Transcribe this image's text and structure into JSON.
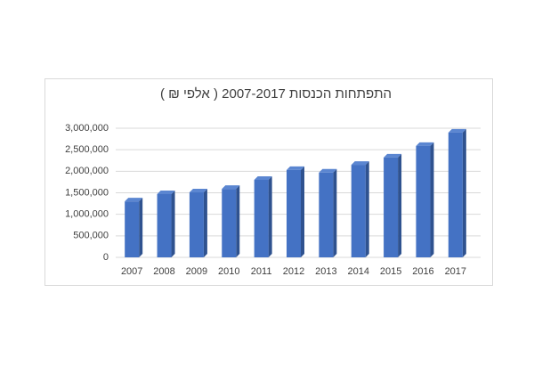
{
  "chart_data": {
    "type": "bar",
    "title": "התפתחות הכנסות 2007-2017 ( אלפי ₪ )",
    "categories": [
      "2007",
      "2008",
      "2009",
      "2010",
      "2011",
      "2012",
      "2013",
      "2014",
      "2015",
      "2016",
      "2017"
    ],
    "values": [
      1300000,
      1470000,
      1510000,
      1590000,
      1800000,
      2030000,
      1970000,
      2150000,
      2320000,
      2590000,
      2900000
    ],
    "color": "#4472c4",
    "ylim": [
      0,
      3000000
    ],
    "yticks": [
      0,
      {
        "value": 500000,
        "label": "500,000"
      },
      {
        "value": 1000000,
        "label": "1,000,000"
      },
      {
        "value": 1500000,
        "label": "1,500,000"
      },
      {
        "value": 2000000,
        "label": "2,000,000"
      },
      {
        "value": 2500000,
        "label": "2,500,000"
      },
      {
        "value": 3000000,
        "label": "3,000,000"
      }
    ],
    "grid": true
  }
}
